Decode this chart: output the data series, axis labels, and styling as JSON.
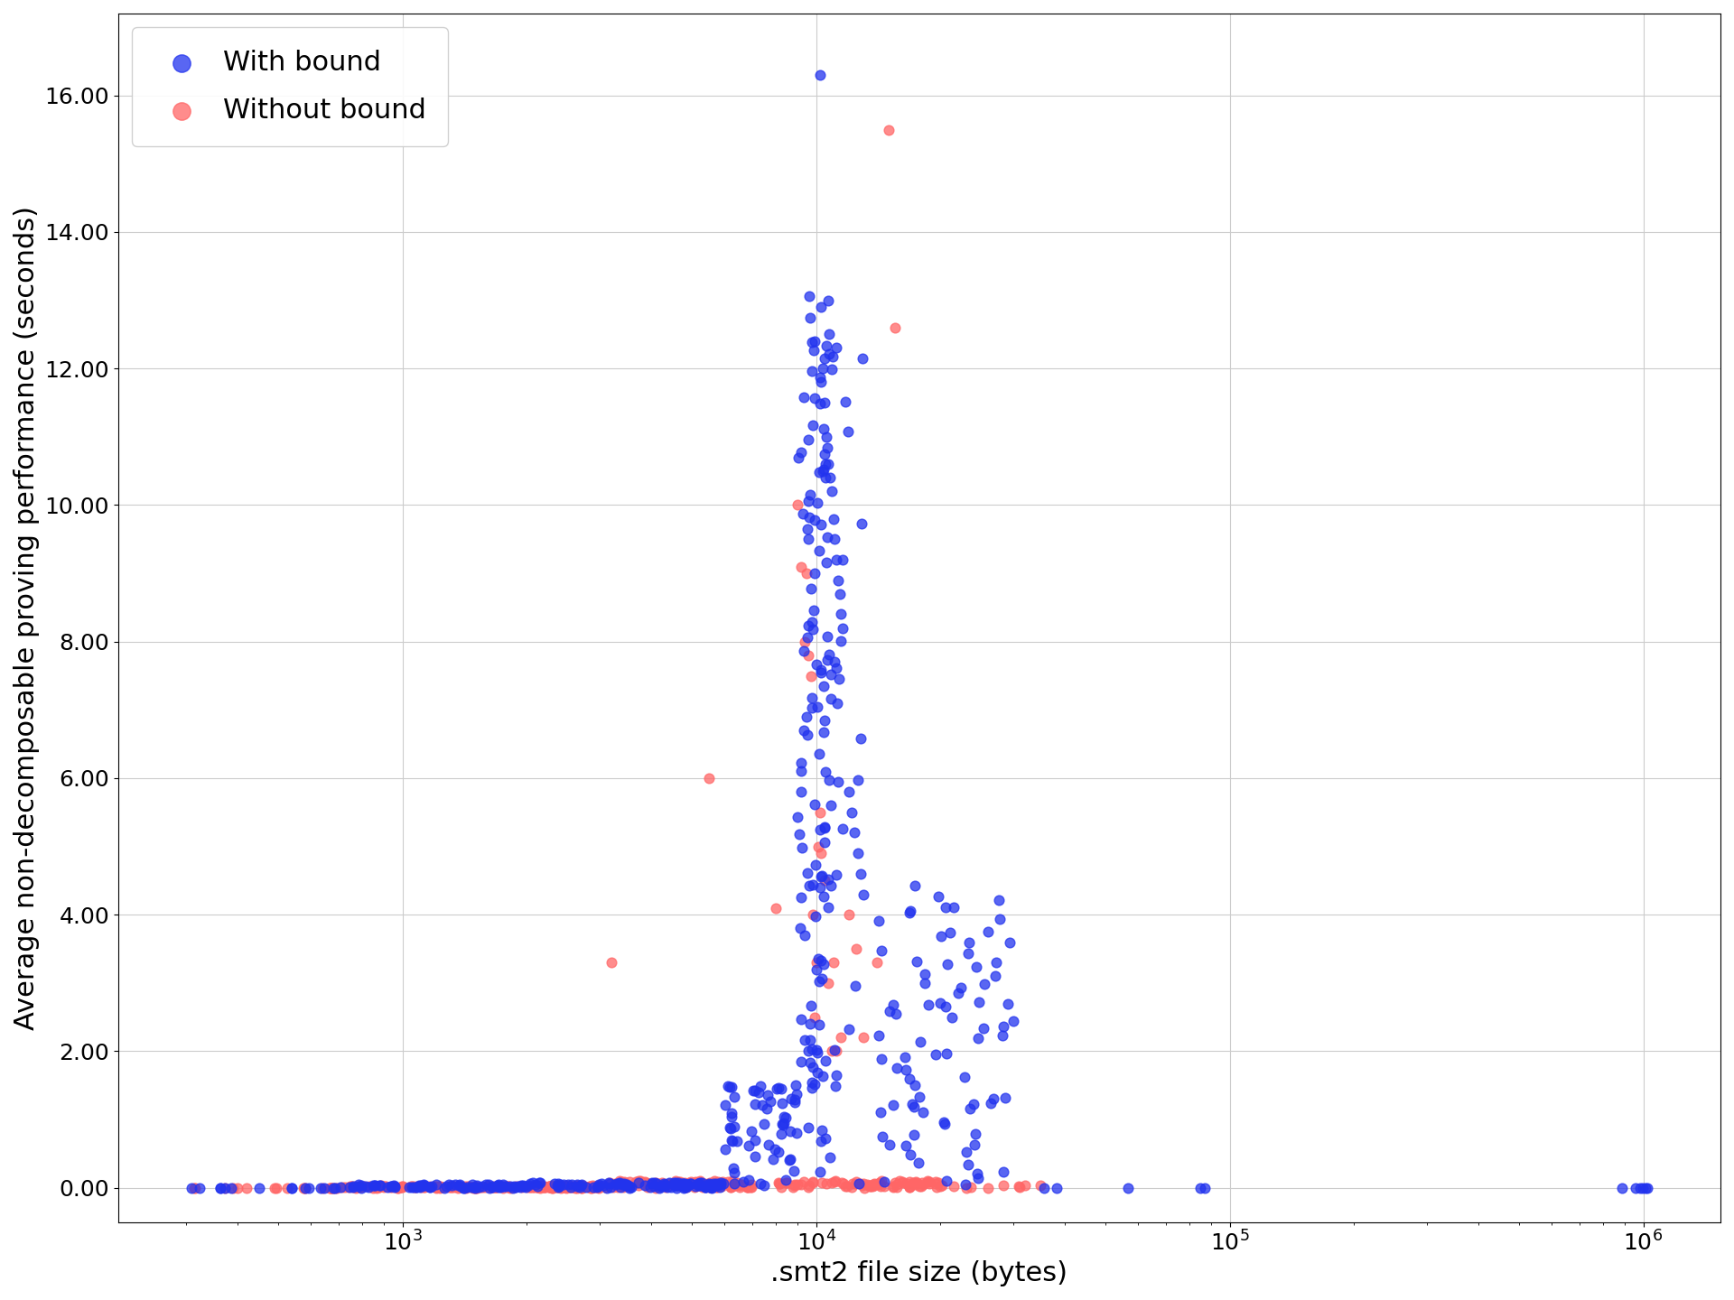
{
  "xlabel": ".smt2 file size (bytes)",
  "ylabel": "Average non-decomposable proving performance (seconds)",
  "blue_label": "With bound",
  "red_label": "Without bound",
  "blue_color": "#2233ee",
  "red_color": "#ff6666",
  "dark_color": "#660033",
  "marker_size": 60,
  "alpha": 0.75,
  "ylim": [
    -0.5,
    17.2
  ],
  "yticks": [
    0.0,
    2.0,
    4.0,
    6.0,
    8.0,
    10.0,
    12.0,
    14.0,
    16.0
  ],
  "seed": 42
}
